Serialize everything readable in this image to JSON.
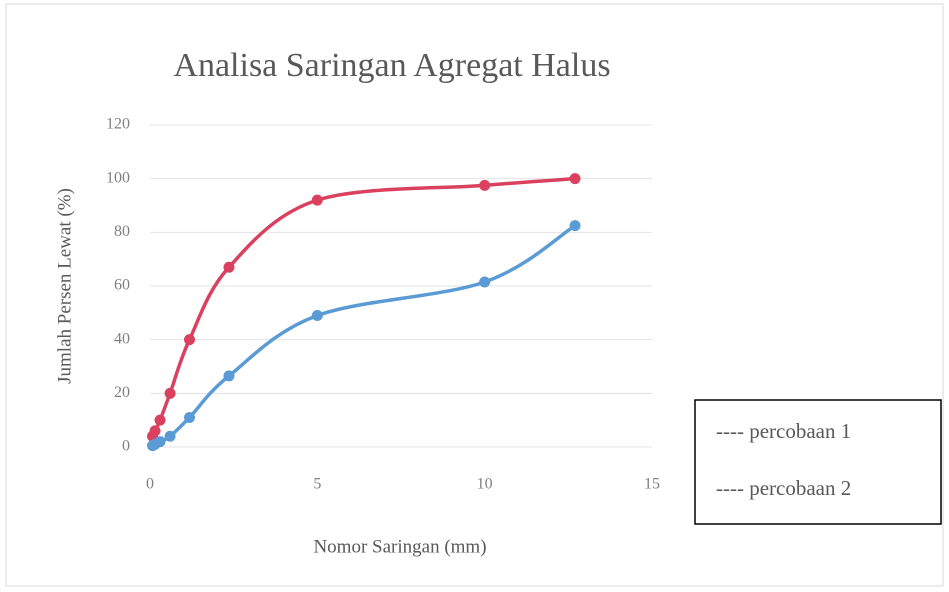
{
  "chart_data": {
    "type": "scatter",
    "title": "Analisa Saringan Agregat Halus",
    "xlabel": "Nomor Saringan (mm)",
    "ylabel": "Jumlah Persen Lewat (%)",
    "x": [
      0.075,
      0.15,
      0.3,
      0.6,
      1.18,
      2.36,
      5,
      10,
      12.7
    ],
    "series": [
      {
        "name": "---- percobaan  1",
        "color": "#d9415f",
        "values": [
          4,
          6,
          10,
          20,
          40,
          67,
          92,
          97.5,
          100
        ]
      },
      {
        "name": "---- percobaan 2",
        "color": "#5b9bd5",
        "values": [
          0.5,
          1,
          2,
          4,
          11,
          26.5,
          49,
          61.5,
          82.5
        ]
      }
    ],
    "xlim": [
      0,
      15
    ],
    "xticks": [
      0,
      5,
      10,
      15
    ],
    "ylim": [
      0,
      120
    ],
    "yticks": [
      0,
      20,
      40,
      60,
      80,
      100,
      120
    ],
    "grid": true,
    "legend": "right",
    "smooth": true
  }
}
